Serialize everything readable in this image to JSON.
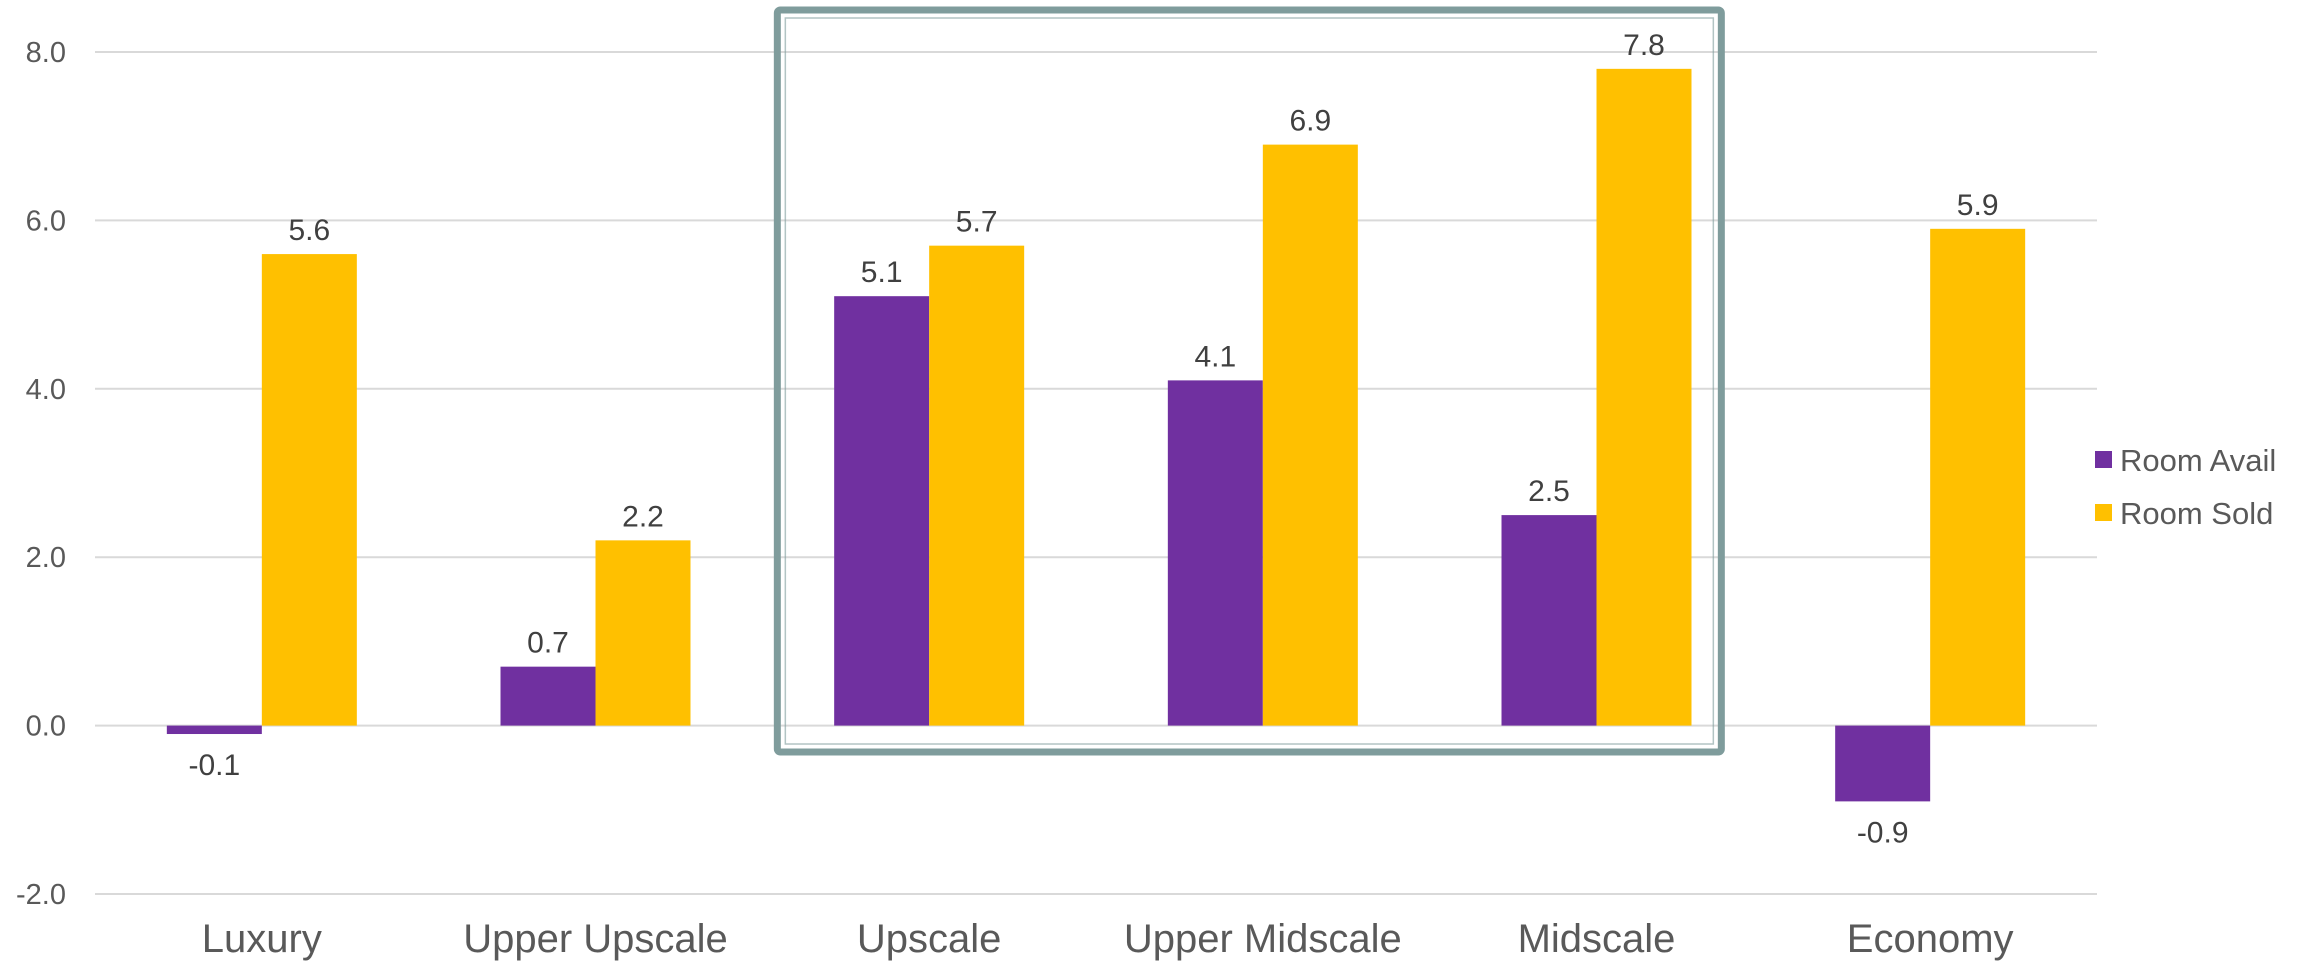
{
  "chart_data": {
    "type": "bar",
    "title": "",
    "xlabel": "",
    "ylabel": "",
    "categories": [
      "Luxury",
      "Upper Upscale",
      "Upscale",
      "Upper Midscale",
      "Midscale",
      "Economy"
    ],
    "series": [
      {
        "name": "Room Avail",
        "color": "#7030A0",
        "values": [
          -0.1,
          0.7,
          5.1,
          4.1,
          2.5,
          -0.9
        ],
        "labels": [
          "-0.1",
          "0.7",
          "5.1",
          "4.1",
          "2.5",
          "-0.9"
        ]
      },
      {
        "name": "Room Sold",
        "color": "#FFC000",
        "values": [
          5.6,
          2.2,
          5.7,
          6.9,
          7.8,
          5.9
        ],
        "labels": [
          "5.6",
          "2.2",
          "5.7",
          "6.9",
          "7.8",
          "5.9"
        ]
      }
    ],
    "ylim": [
      -2.0,
      8.0
    ],
    "yticks": [
      "-2.0",
      "0.0",
      "2.0",
      "4.0",
      "6.0",
      "8.0"
    ],
    "grid": true,
    "gridline_color": "#D9D9D9",
    "legend_position": "right",
    "highlight_box": {
      "categories": [
        "Upscale",
        "Upper Midscale",
        "Midscale"
      ],
      "color": "#7F9C9C"
    }
  }
}
